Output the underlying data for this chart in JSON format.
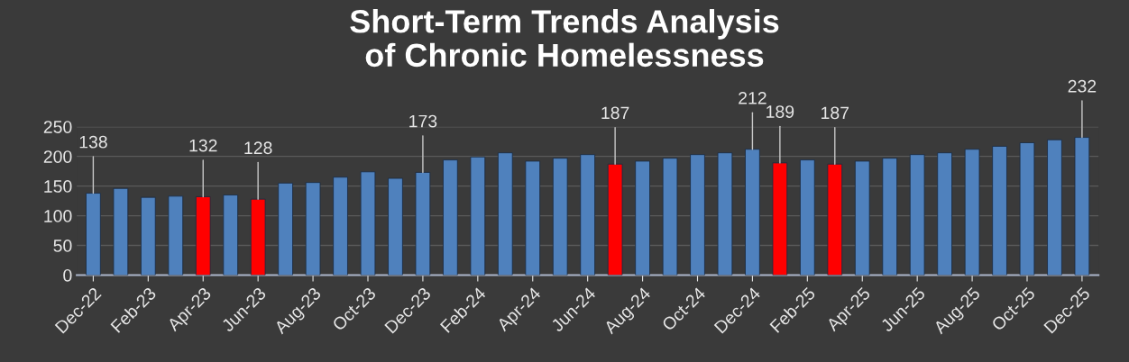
{
  "chart_data": {
    "type": "bar",
    "title": "Short-Term Trends Analysis\nof Chronic Homelessness",
    "categories": [
      "Dec-22",
      null,
      "Feb-23",
      null,
      "Apr-23",
      null,
      "Jun-23",
      null,
      "Aug-23",
      null,
      "Oct-23",
      null,
      "Dec-23",
      null,
      "Feb-24",
      null,
      "Apr-24",
      null,
      "Jun-24",
      null,
      "Aug-24",
      null,
      "Oct-24",
      null,
      "Dec-24",
      null,
      "Feb-25",
      null,
      "Apr-25",
      null,
      "Jun-25",
      null,
      "Aug-25",
      null,
      "Oct-25",
      null,
      "Dec-25"
    ],
    "values": [
      138,
      146,
      131,
      133,
      132,
      135,
      128,
      155,
      156,
      165,
      174,
      163,
      173,
      194,
      199,
      206,
      192,
      197,
      203,
      187,
      192,
      197,
      203,
      206,
      212,
      189,
      194,
      187,
      192,
      197,
      203,
      206,
      212,
      217,
      223,
      228,
      232
    ],
    "colors": [
      "#4f81bd",
      "#4f81bd",
      "#4f81bd",
      "#4f81bd",
      "#ff0000",
      "#4f81bd",
      "#ff0000",
      "#4f81bd",
      "#4f81bd",
      "#4f81bd",
      "#4f81bd",
      "#4f81bd",
      "#4f81bd",
      "#4f81bd",
      "#4f81bd",
      "#4f81bd",
      "#4f81bd",
      "#4f81bd",
      "#4f81bd",
      "#ff0000",
      "#4f81bd",
      "#4f81bd",
      "#4f81bd",
      "#4f81bd",
      "#4f81bd",
      "#ff0000",
      "#4f81bd",
      "#ff0000",
      "#4f81bd",
      "#4f81bd",
      "#4f81bd",
      "#4f81bd",
      "#4f81bd",
      "#4f81bd",
      "#4f81bd",
      "#4f81bd",
      "#4f81bd"
    ],
    "value_labels": [
      "138",
      null,
      null,
      null,
      "132",
      null,
      "128",
      null,
      null,
      null,
      null,
      null,
      "173",
      null,
      null,
      null,
      null,
      null,
      null,
      "187",
      null,
      null,
      null,
      null,
      "212",
      "189",
      null,
      "187",
      null,
      null,
      null,
      null,
      null,
      null,
      null,
      null,
      "232"
    ],
    "ylim": [
      0,
      250
    ],
    "yticks": [
      0,
      50,
      100,
      150,
      200,
      250
    ],
    "grid": "y"
  }
}
